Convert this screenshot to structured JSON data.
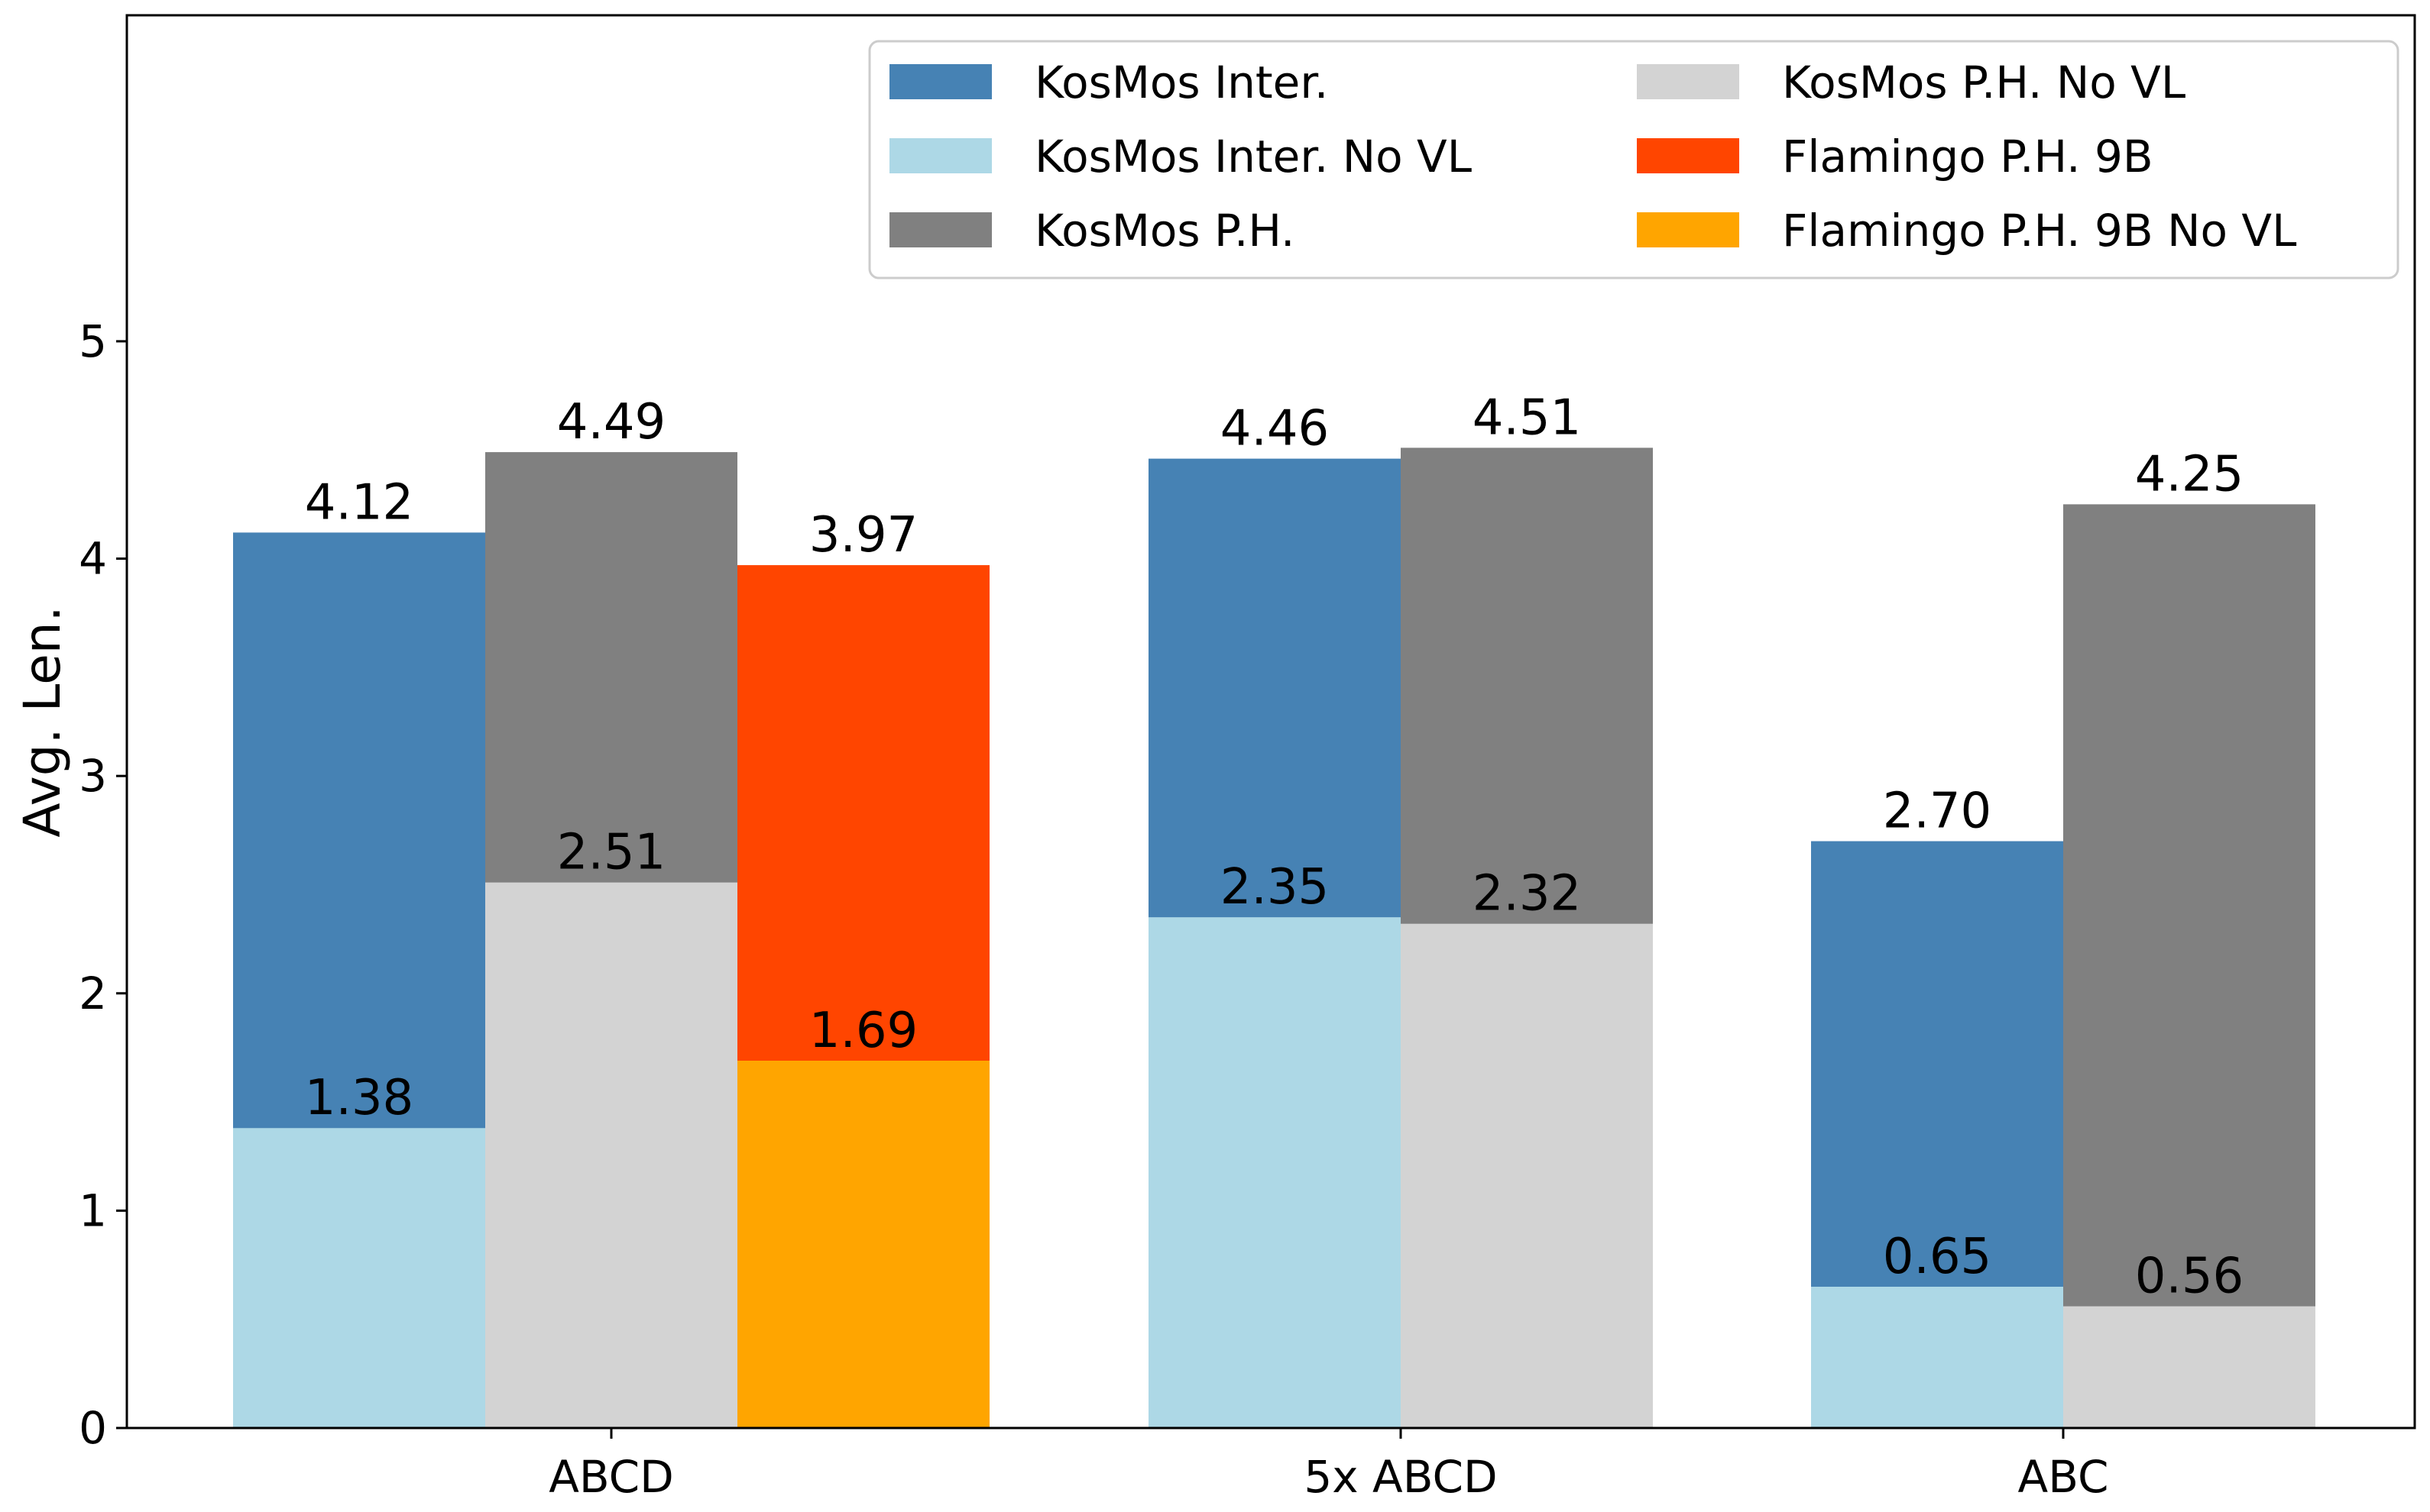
{
  "chart_data": {
    "type": "bar",
    "title": "",
    "xlabel": "",
    "ylabel": "Avg. Len.",
    "ylim": [
      0,
      6.5
    ],
    "yticks": [
      0,
      1,
      2,
      3,
      4,
      5
    ],
    "ytick_labels": [
      "0",
      "1",
      "2",
      "3",
      "4",
      "5"
    ],
    "grid": false,
    "legend_position": "top-right",
    "categories": [
      "ABCD",
      "5x ABCD",
      "ABC"
    ],
    "series": [
      {
        "name": "KosMos Inter.",
        "color": "#4682b4"
      },
      {
        "name": "KosMos Inter. No VL",
        "color": "#add8e6"
      },
      {
        "name": "KosMos P.H.",
        "color": "#808080"
      },
      {
        "name": "KosMos P.H. No VL",
        "color": "#d3d3d3"
      },
      {
        "name": "Flamingo P.H. 9B",
        "color": "#ff4500"
      },
      {
        "name": "Flamingo P.H. 9B No VL",
        "color": "#ffa500"
      }
    ],
    "groups": [
      {
        "category": "ABCD",
        "slot": 0,
        "with_vl": 0,
        "no_vl": 1,
        "with_vl_value": 4.12,
        "no_vl_value": 1.38,
        "with_vl_label": "4.12",
        "no_vl_label": "1.38"
      },
      {
        "category": "ABCD",
        "slot": 1,
        "with_vl": 2,
        "no_vl": 3,
        "with_vl_value": 4.49,
        "no_vl_value": 2.51,
        "with_vl_label": "4.49",
        "no_vl_label": "2.51"
      },
      {
        "category": "ABCD",
        "slot": 2,
        "with_vl": 4,
        "no_vl": 5,
        "with_vl_value": 3.97,
        "no_vl_value": 1.69,
        "with_vl_label": "3.97",
        "no_vl_label": "1.69"
      },
      {
        "category": "5x ABCD",
        "slot": 0,
        "with_vl": 0,
        "no_vl": 1,
        "with_vl_value": 4.46,
        "no_vl_value": 2.35,
        "with_vl_label": "4.46",
        "no_vl_label": "2.35"
      },
      {
        "category": "5x ABCD",
        "slot": 1,
        "with_vl": 2,
        "no_vl": 3,
        "with_vl_value": 4.51,
        "no_vl_value": 2.32,
        "with_vl_label": "4.51",
        "no_vl_label": "2.32"
      },
      {
        "category": "ABC",
        "slot": 0,
        "with_vl": 0,
        "no_vl": 1,
        "with_vl_value": 2.7,
        "no_vl_value": 0.65,
        "with_vl_label": "2.70",
        "no_vl_label": "0.65"
      },
      {
        "category": "ABC",
        "slot": 1,
        "with_vl": 2,
        "no_vl": 3,
        "with_vl_value": 4.25,
        "no_vl_value": 0.56,
        "with_vl_label": "4.25",
        "no_vl_label": "0.56"
      }
    ]
  }
}
